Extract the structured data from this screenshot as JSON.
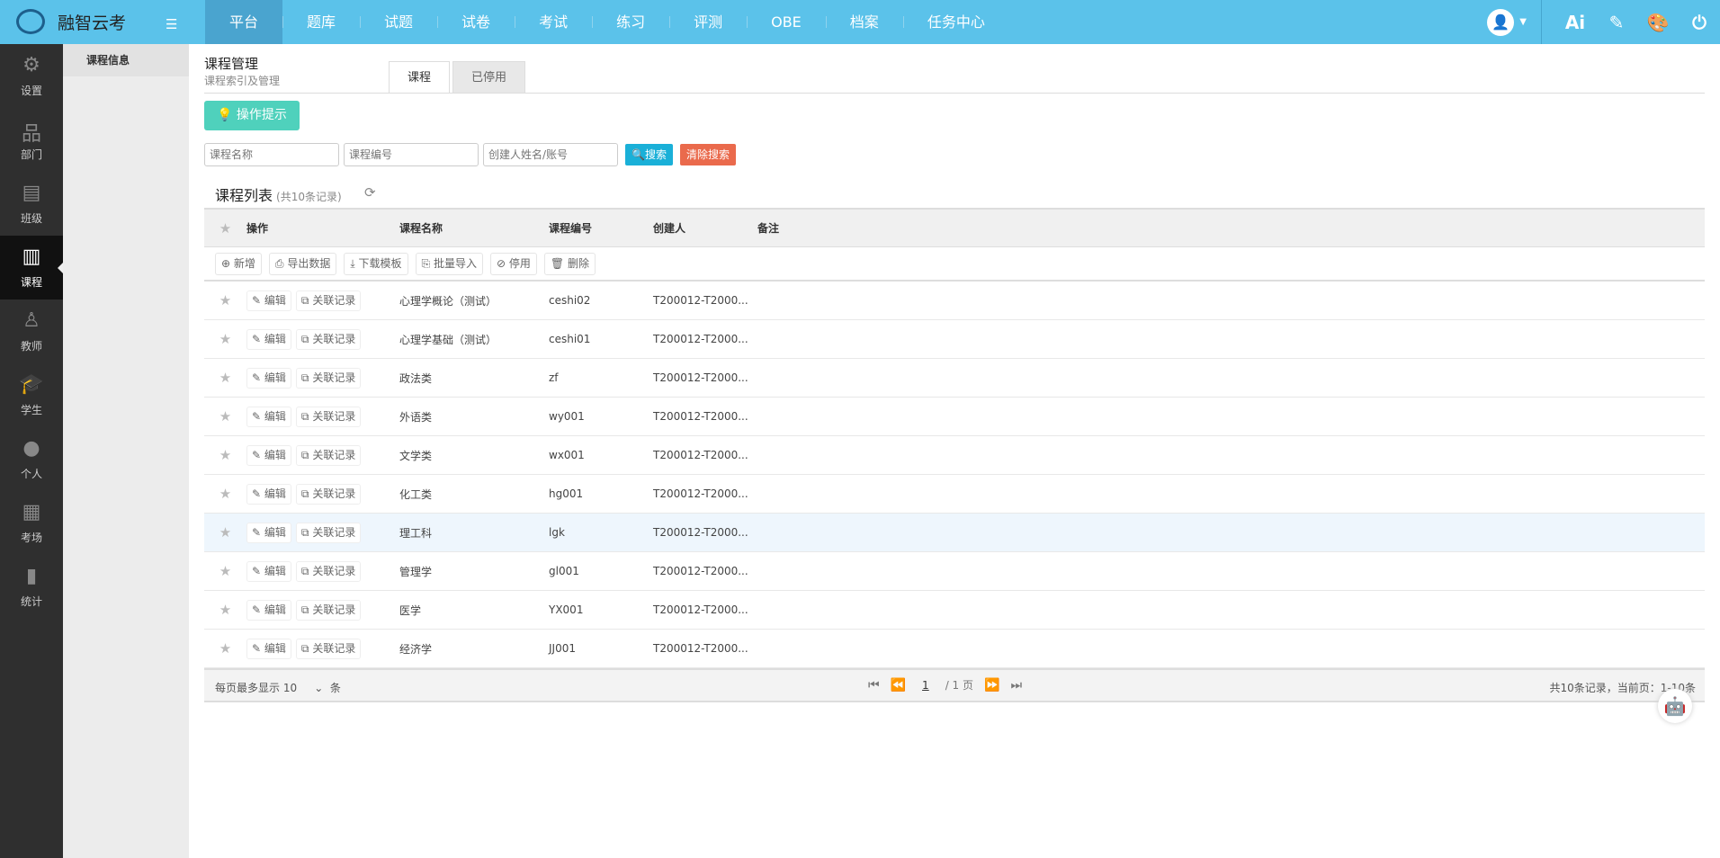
{
  "app": {
    "name": "融智云考",
    "menu_toggle_icon": "list-icon"
  },
  "nav": [
    {
      "label": "平台",
      "active": true
    },
    {
      "label": "题库"
    },
    {
      "label": "试题"
    },
    {
      "label": "试卷"
    },
    {
      "label": "考试"
    },
    {
      "label": "练习"
    },
    {
      "label": "评测"
    },
    {
      "label": "OBE"
    },
    {
      "label": "档案"
    },
    {
      "label": "任务中心"
    }
  ],
  "topright": {
    "ai": "Ai"
  },
  "sidebar": [
    {
      "label": "设置",
      "icon": "⚙"
    },
    {
      "label": "部门",
      "icon": "品"
    },
    {
      "label": "班级",
      "icon": "▤"
    },
    {
      "label": "课程",
      "icon": "▥",
      "active": true
    },
    {
      "label": "教师",
      "icon": "♙"
    },
    {
      "label": "学生",
      "icon": "🎓"
    },
    {
      "label": "个人",
      "icon": "●"
    },
    {
      "label": "考场",
      "icon": "▦"
    },
    {
      "label": "统计",
      "icon": "▮"
    }
  ],
  "subnav": {
    "item": "课程信息"
  },
  "page": {
    "title": "课程管理",
    "subtitle": "课程索引及管理",
    "tabs": [
      "课程",
      "已停用"
    ],
    "tip": "操作提示"
  },
  "search": {
    "name_ph": "课程名称",
    "code_ph": "课程编号",
    "creator_ph": "创建人姓名/账号",
    "search": "搜索",
    "clear": "清除搜索"
  },
  "list": {
    "title": "课程列表",
    "count": "(共10条记录)"
  },
  "table": {
    "headers": [
      "操作",
      "课程名称",
      "课程编号",
      "创建人",
      "备注"
    ],
    "toolbar": [
      "新增",
      "导出数据",
      "下载模板",
      "批量导入",
      "停用",
      "删除"
    ],
    "actions": {
      "edit": "编辑",
      "link": "关联记录"
    },
    "rows": [
      {
        "name": "心理学概论（测试）",
        "code": "ceshi02",
        "creator": "T200012-T2000..."
      },
      {
        "name": "心理学基础（测试）",
        "code": "ceshi01",
        "creator": "T200012-T2000..."
      },
      {
        "name": "政法类",
        "code": "zf",
        "creator": "T200012-T2000..."
      },
      {
        "name": "外语类",
        "code": "wy001",
        "creator": "T200012-T2000..."
      },
      {
        "name": "文学类",
        "code": "wx001",
        "creator": "T200012-T2000..."
      },
      {
        "name": "化工类",
        "code": "hg001",
        "creator": "T200012-T2000..."
      },
      {
        "name": "理工科",
        "code": "lgk",
        "creator": "T200012-T2000..."
      },
      {
        "name": "管理学",
        "code": "gl001",
        "creator": "T200012-T2000..."
      },
      {
        "name": "医学",
        "code": "YX001",
        "creator": "T200012-T2000..."
      },
      {
        "name": "经济学",
        "code": "JJ001",
        "creator": "T200012-T2000..."
      }
    ]
  },
  "pager": {
    "per_page_label": "每页最多显示",
    "per_page": "10",
    "unit": "条",
    "page": "1",
    "total_pages": "/ 1 页",
    "summary": "共10条记录，当前页：1-10条"
  },
  "colors": {
    "topbar": "#5bc2ea",
    "tip": "#4fd1bc",
    "search": "#1ab0d8",
    "clear": "#ea6a4c"
  }
}
